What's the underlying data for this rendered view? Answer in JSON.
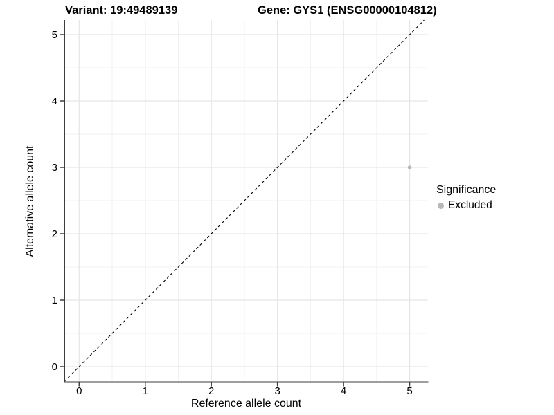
{
  "chart_data": {
    "type": "scatter",
    "title_left": "Variant: 19:49489139",
    "title_right": "Gene: GYS1 (ENSG00000104812)",
    "xlabel": "Reference allele count",
    "ylabel": "Alternative allele count",
    "x_ticks": [
      0,
      1,
      2,
      3,
      4,
      5
    ],
    "y_ticks": [
      0,
      1,
      2,
      3,
      4,
      5
    ],
    "xlim": [
      -0.22,
      5.27
    ],
    "ylim": [
      -0.23,
      5.22
    ],
    "grid": {
      "major": true,
      "minor": true,
      "minor_step": 0.5,
      "legend_position": "right"
    },
    "points": [
      {
        "x": 5,
        "y": 3,
        "series": "Excluded"
      }
    ],
    "reference_line": {
      "equation": "y = x",
      "style": "dashed"
    },
    "legend": {
      "title": "Significance",
      "items": [
        {
          "label": "Excluded",
          "color": "#b8b8b8"
        }
      ]
    }
  },
  "colors": {
    "background": "#ffffff",
    "grid_major": "#e5e5e5",
    "grid_minor": "#f1f1f1",
    "axis_line": "#3d3d3d",
    "tick_text": "#000000",
    "point": "#b8b8b8",
    "reference_line": "#000000"
  }
}
